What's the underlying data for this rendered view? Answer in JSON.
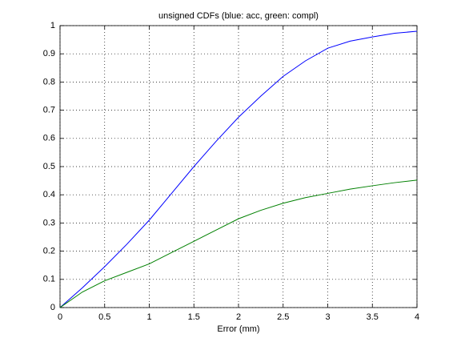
{
  "chart_data": {
    "type": "line",
    "title": "unsigned CDFs (blue: acc, green: compl)",
    "x_label": "Error (mm)",
    "x": [
      0,
      0.25,
      0.5,
      0.75,
      1,
      1.25,
      1.5,
      1.75,
      2,
      2.25,
      2.5,
      2.75,
      3,
      3.25,
      3.5,
      3.75,
      4
    ],
    "series": [
      {
        "color": "#0000ff",
        "values": [
          0,
          0.07,
          0.145,
          0.225,
          0.31,
          0.405,
          0.5,
          0.59,
          0.675,
          0.75,
          0.82,
          0.875,
          0.92,
          0.945,
          0.96,
          0.973,
          0.98
        ]
      },
      {
        "color": "#008000",
        "values": [
          0,
          0.055,
          0.095,
          0.125,
          0.155,
          0.195,
          0.235,
          0.275,
          0.315,
          0.345,
          0.37,
          0.39,
          0.405,
          0.42,
          0.432,
          0.443,
          0.452
        ]
      }
    ],
    "xlim": [
      0,
      4
    ],
    "xticks": [
      0,
      0.5,
      1,
      1.5,
      2,
      2.5,
      3,
      3.5,
      4
    ],
    "ylim": [
      0,
      1
    ],
    "yticks": [
      0,
      0.1,
      0.2,
      0.3,
      0.4,
      0.5,
      0.6,
      0.7,
      0.8,
      0.9,
      1
    ],
    "grid": true
  }
}
